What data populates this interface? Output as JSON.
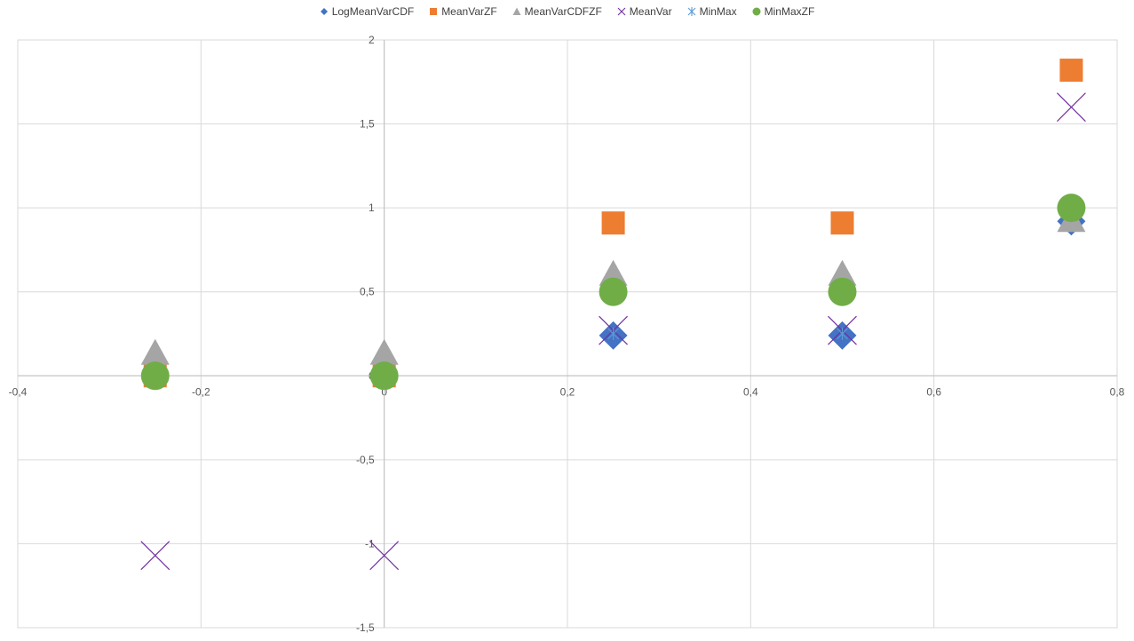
{
  "chart_data": {
    "type": "scatter",
    "xlim": [
      -0.4,
      0.8
    ],
    "ylim": [
      -1.5,
      2
    ],
    "x_ticks": [
      "-0,4",
      "-0,2",
      "0",
      "0,2",
      "0,4",
      "0,6",
      "0,8"
    ],
    "y_ticks": [
      "-1,5",
      "-1",
      "-0,5",
      "0",
      "0,5",
      "1",
      "1,5",
      "2"
    ],
    "grid": true,
    "legend_position": "top",
    "series": [
      {
        "name": "LogMeanVarCDF",
        "color": "#4472C4",
        "marker": "diamond",
        "points": [
          [
            -0.25,
            0
          ],
          [
            0,
            0
          ],
          [
            0.25,
            0.24
          ],
          [
            0.5,
            0.24
          ],
          [
            0.75,
            0.92
          ]
        ]
      },
      {
        "name": "MeanVarZF",
        "color": "#ED7D31",
        "marker": "square",
        "points": [
          [
            -0.25,
            0
          ],
          [
            0,
            0
          ],
          [
            0.25,
            0.91
          ],
          [
            0.5,
            0.91
          ],
          [
            0.75,
            1.82
          ]
        ]
      },
      {
        "name": "MeanVarCDFZF",
        "color": "#A5A5A5",
        "marker": "triangle",
        "points": [
          [
            -0.25,
            0.13
          ],
          [
            0,
            0.13
          ],
          [
            0.25,
            0.6
          ],
          [
            0.5,
            0.6
          ],
          [
            0.75,
            0.92
          ]
        ]
      },
      {
        "name": "MeanVar",
        "color": "#7030A0",
        "marker": "x",
        "points": [
          [
            -0.25,
            -1.07
          ],
          [
            0,
            -1.07
          ],
          [
            0.25,
            0.27
          ],
          [
            0.5,
            0.27
          ],
          [
            0.75,
            1.6
          ]
        ]
      },
      {
        "name": "MinMax",
        "color": "#5B9BD5",
        "marker": "star",
        "points": [
          [
            -0.25,
            0
          ],
          [
            0,
            0
          ],
          [
            0.25,
            0.25
          ],
          [
            0.5,
            0.25
          ],
          [
            0.75,
            1
          ]
        ]
      },
      {
        "name": "MinMaxZF",
        "color": "#70AD47",
        "marker": "circle",
        "points": [
          [
            -0.25,
            0
          ],
          [
            0,
            0
          ],
          [
            0.25,
            0.5
          ],
          [
            0.5,
            0.5
          ],
          [
            0.75,
            1
          ]
        ]
      }
    ]
  }
}
